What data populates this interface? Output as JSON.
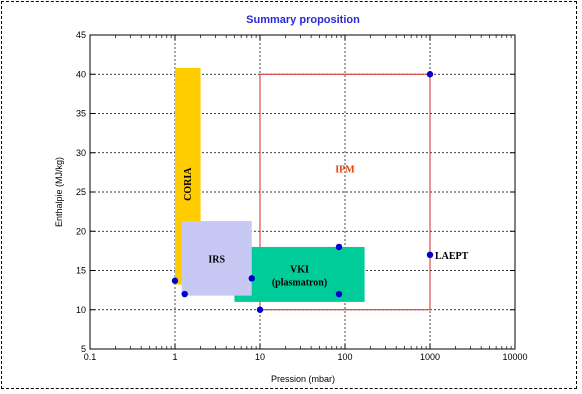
{
  "chart_data": {
    "type": "scatter",
    "title": "Summary proposition",
    "xlabel": "Pression (mbar)",
    "ylabel": "Enthalpie (MJ/kg)",
    "x_scale": "log",
    "xlim": [
      0.1,
      10000
    ],
    "ylim": [
      5,
      45
    ],
    "x_ticks": [
      0.1,
      1,
      10,
      100,
      1000,
      10000
    ],
    "x_tick_labels": [
      "0.1",
      "1",
      "10",
      "100",
      "1000",
      "10000"
    ],
    "y_ticks": [
      5,
      10,
      15,
      20,
      25,
      30,
      35,
      40,
      45
    ],
    "y_tick_labels": [
      "5",
      "10",
      "15",
      "20",
      "25",
      "30",
      "35",
      "40",
      "45"
    ],
    "grid": true,
    "title_color": "#2a2ad8",
    "regions": [
      {
        "name": "CORIA",
        "x_range": [
          1,
          2
        ],
        "y_range": [
          13.2,
          40.8
        ],
        "fill": "#ffcc00",
        "label_color": "#000000",
        "label_orientation": "vertical"
      },
      {
        "name": "IPM",
        "x_range": [
          10,
          1000
        ],
        "y_range": [
          10,
          40
        ],
        "fill": "none",
        "stroke": "#d62828",
        "label_color": "#e8400c"
      },
      {
        "name": "VKI\n(plasmatron)",
        "x_range": [
          5,
          170
        ],
        "y_range": [
          11,
          18
        ],
        "fill": "#00cc99",
        "label_color": "#000000"
      },
      {
        "name": "IRS",
        "x_range": [
          1.2,
          8
        ],
        "y_range": [
          11.8,
          21.3
        ],
        "fill": "#c8c8f4",
        "label_color": "#000000"
      }
    ],
    "series": [
      {
        "color": "#0000cc",
        "points": [
          [
            1,
            13.7
          ],
          [
            1.3,
            12
          ],
          [
            8,
            14
          ],
          [
            10,
            10
          ],
          [
            85,
            18
          ],
          [
            85,
            12
          ],
          [
            1000,
            40
          ],
          [
            1000,
            17
          ]
        ]
      }
    ],
    "point_labels": [
      {
        "text": "LAEPT",
        "x": 1000,
        "y": 17
      }
    ]
  }
}
